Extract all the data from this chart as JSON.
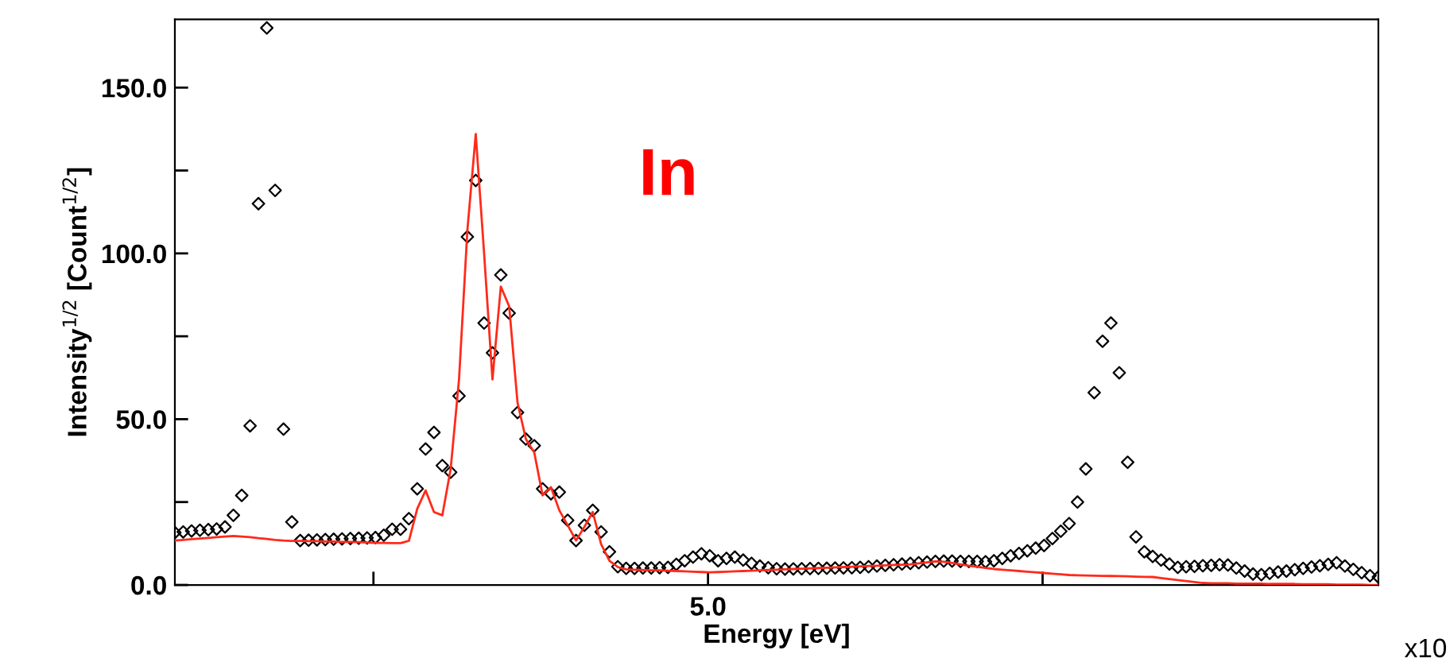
{
  "chart_data": {
    "type": "scatter",
    "xlabel": "Energy [eV]",
    "ylabel": "Intensity$^{1/2}$ [Count$^{1/2}$]",
    "annotations": [
      "In",
      "5.0",
      "x10"
    ],
    "categories": [
      null,
      null,
      null,
      null,
      null,
      null,
      null,
      null,
      null,
      null,
      null,
      null,
      null,
      null,
      null,
      null,
      null,
      null,
      null,
      null,
      null,
      null,
      null,
      null,
      null,
      null,
      null,
      null,
      null,
      null,
      null,
      null,
      null,
      null,
      null,
      null,
      null,
      null,
      null,
      null,
      null,
      null,
      null,
      null,
      null,
      null,
      null,
      null,
      null,
      null,
      null,
      null,
      null,
      null,
      null,
      null,
      null,
      null,
      null,
      null,
      null,
      null,
      null,
      null,
      null,
      null,
      null,
      null,
      null,
      null,
      null,
      null,
      null,
      null,
      null,
      null,
      null,
      null,
      null,
      null,
      null,
      null,
      null,
      null,
      null,
      null,
      null,
      null,
      null,
      null,
      null,
      null,
      null,
      null,
      null,
      null,
      null,
      null,
      null,
      null,
      null,
      null,
      null,
      null,
      null,
      null,
      null,
      null,
      null,
      null,
      null,
      null,
      null,
      null,
      null,
      null,
      null,
      null,
      null,
      null,
      null,
      null,
      null,
      null,
      null,
      null,
      null,
      null,
      null,
      null,
      null,
      null,
      null,
      null,
      null,
      null,
      null,
      null,
      null,
      null,
      null,
      null,
      null,
      null,
      null
    ],
    "ylim": [
      0,
      170.6
    ],
    "yticks": [
      {
        "value": 0,
        "label": "0.0"
      },
      {
        "value": 25,
        "label": null
      },
      {
        "value": 50,
        "label": "50.0"
      },
      {
        "value": 75,
        "label": null
      },
      {
        "value": 100,
        "label": "100.0"
      },
      {
        "value": 125,
        "label": null
      },
      {
        "value": 150,
        "label": "150.0"
      }
    ],
    "grid": false,
    "legend": false,
    "series": [
      {
        "marker": "diamond",
        "color": "#000000",
        "values": [
          15.8,
          16,
          16.3,
          16.5,
          16.7,
          16.9,
          17.5,
          21,
          27,
          48,
          115,
          168,
          119,
          47,
          19,
          13.4,
          13.5,
          13.6,
          13.7,
          13.8,
          13.9,
          14,
          14.1,
          14.2,
          14.3,
          15,
          16.8,
          16.8,
          20,
          29,
          41,
          46,
          36,
          34,
          57,
          105,
          122,
          79,
          70,
          93.5,
          82,
          52,
          44,
          42,
          29,
          27.5,
          28,
          19.5,
          13.4,
          18,
          22.5,
          16,
          10,
          5.5,
          5,
          5,
          5.1,
          5.1,
          5.2,
          5.3,
          6.2,
          7.3,
          8.4,
          9.4,
          8.8,
          7.3,
          8,
          8.4,
          7.5,
          6.5,
          5.7,
          5.2,
          4.9,
          4.8,
          4.85,
          4.9,
          4.95,
          5,
          5.05,
          5.1,
          5.15,
          5.2,
          5.3,
          5.5,
          5.7,
          5.9,
          6.1,
          6.3,
          6.5,
          6.7,
          6.9,
          7.1,
          7.2,
          7.2,
          7.1,
          7.1,
          7.1,
          7,
          7.3,
          8,
          8.8,
          9.5,
          10.3,
          11.1,
          11.9,
          14,
          16.2,
          18.5,
          25,
          35,
          58,
          73.5,
          79,
          64,
          37,
          14.5,
          10,
          8.6,
          7.5,
          6.3,
          5.3,
          5.5,
          5.6,
          5.8,
          5.9,
          6.1,
          6,
          5.1,
          4.2,
          3.3,
          3.1,
          3.5,
          3.9,
          4.2,
          4.6,
          5,
          5.4,
          5.8,
          6.2,
          6.7,
          5.7,
          4.7,
          3.7,
          2.8,
          2.4
        ]
      },
      {
        "type": "line",
        "line_style": "solid",
        "color": "#ff2a1a",
        "values": [
          13.4,
          13.6,
          13.8,
          14,
          14.2,
          14.4,
          14.6,
          14.8,
          14.6,
          14.4,
          14.1,
          13.9,
          13.6,
          13.4,
          13.3,
          13.3,
          13.2,
          13.2,
          13.1,
          13.1,
          13,
          13,
          12.9,
          12.8,
          12.7,
          12.7,
          12.6,
          12.6,
          13.3,
          23,
          28.5,
          22,
          21,
          35,
          62,
          107,
          136,
          100,
          62,
          90,
          84,
          55,
          44,
          40,
          27,
          29.5,
          22.5,
          18,
          13.4,
          17.5,
          22,
          12.3,
          7.3,
          5.4,
          4.7,
          4.6,
          4.5,
          4.4,
          4.4,
          4.3,
          4.2,
          4.1,
          4,
          3.9,
          3.8,
          3.9,
          4,
          4.1,
          4.2,
          4.3,
          4.4,
          4.5,
          4.6,
          4.7,
          4.8,
          4.9,
          5,
          5.1,
          5.2,
          5.3,
          5.4,
          5.5,
          5.6,
          5.7,
          5.8,
          5.9,
          6,
          6.1,
          6.2,
          6.5,
          6.8,
          7.1,
          7,
          6.6,
          6.2,
          5.8,
          5.5,
          5.1,
          4.8,
          4.6,
          4.4,
          4.2,
          4,
          3.8,
          3.6,
          3.4,
          3.2,
          3,
          2.9,
          2.85,
          2.8,
          2.75,
          2.7,
          2.65,
          2.6,
          2.5,
          2.45,
          2.4,
          2.1,
          1.8,
          1.5,
          1.2,
          0.9,
          0.6,
          0.5,
          0.5,
          0.5,
          0.4,
          0.4,
          0.4,
          0.4,
          0.3,
          0.3,
          0.3,
          0.3,
          0.2,
          0.2,
          0.2,
          0.2,
          0.1,
          0.1,
          0.1,
          0.1,
          0,
          0
        ]
      }
    ]
  }
}
